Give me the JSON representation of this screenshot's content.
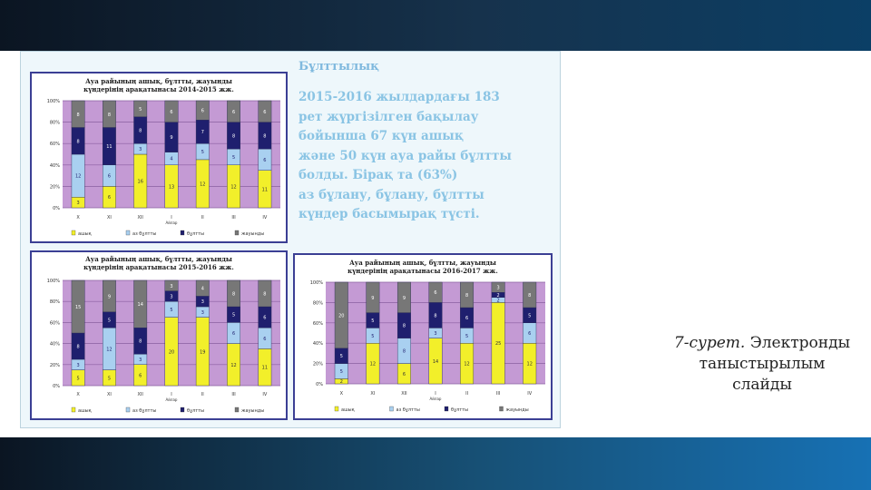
{
  "colors": {
    "clear": "#f2ef2a",
    "partly_cloudy": "#a9d0f0",
    "cloudy": "#1f1f6e",
    "rainy": "#777777",
    "plot_bg": "#c49ad4",
    "frame": "#3b3f94"
  },
  "info": {
    "title": "Бұлттылық",
    "lines": [
      "2015-2016 жылдардағы 183",
      "рет жүргізілген бақылау",
      "бойынша 67 күн ашық",
      "және 50 күн ауа райы бұлтты",
      "болды. Бірақ та (63%)",
      "аз бұлану, бұлану, бұлтты",
      "күндер басымырақ түсті."
    ]
  },
  "caption": {
    "label": "7-сурет.",
    "title_lines": [
      "Электронды",
      "таныстырылым",
      "слайды"
    ]
  },
  "chart_data": [
    {
      "type": "bar",
      "stacked": true,
      "title_lines": [
        "Ауа райының ашық, бұлтты, жауынды",
        "күндерінің арақатынасы 2014-2015 жж."
      ],
      "categories": [
        "X",
        "XI",
        "XII",
        "I",
        "II",
        "III",
        "IV"
      ],
      "category_marker": "Айлар",
      "y_ticks": [
        "0%",
        "20%",
        "40%",
        "60%",
        "80%",
        "100%"
      ],
      "ylim": [
        0,
        100
      ],
      "grid": true,
      "legend": [
        "ашық",
        "аз бұлтты",
        "бұлтты",
        "жауынды"
      ],
      "legend_position": "bottom",
      "series": [
        {
          "name": "ашық",
          "values": [
            10,
            20,
            50,
            40,
            45,
            40,
            35
          ],
          "labels": [
            "3",
            "6",
            "16",
            "13",
            "12",
            "12",
            "11"
          ]
        },
        {
          "name": "аз бұлтты",
          "values": [
            40,
            20,
            10,
            12,
            15,
            15,
            20
          ],
          "labels": [
            "12",
            "6",
            "3",
            "4",
            "5",
            "5",
            "6"
          ]
        },
        {
          "name": "бұлтты",
          "values": [
            25,
            35,
            25,
            28,
            22,
            25,
            25
          ],
          "labels": [
            "8",
            "11",
            "8",
            "9",
            "7",
            "8",
            "8"
          ]
        },
        {
          "name": "жауынды",
          "values": [
            25,
            25,
            15,
            20,
            18,
            20,
            20
          ],
          "labels": [
            "8",
            "8",
            "5",
            "6",
            "6",
            "6",
            "6"
          ]
        }
      ]
    },
    {
      "type": "bar",
      "stacked": true,
      "title_lines": [
        "Ауа райының ашық, бұлтты, жауынды",
        "күндерінің арақатынасы 2015-2016 жж."
      ],
      "categories": [
        "X",
        "XI",
        "XII",
        "I",
        "II",
        "III",
        "IV"
      ],
      "category_marker": "Айлар",
      "y_ticks": [
        "0%",
        "20%",
        "40%",
        "60%",
        "80%",
        "100%"
      ],
      "ylim": [
        0,
        100
      ],
      "grid": true,
      "legend": [
        "ашық",
        "аз бұлтты",
        "бұлтты",
        "жауынды"
      ],
      "legend_position": "bottom",
      "series": [
        {
          "name": "ашық",
          "values": [
            15,
            15,
            20,
            65,
            65,
            40,
            35
          ],
          "labels": [
            "5",
            "5",
            "6",
            "20",
            "19",
            "12",
            "11"
          ]
        },
        {
          "name": "аз бұлтты",
          "values": [
            10,
            40,
            10,
            15,
            10,
            20,
            20
          ],
          "labels": [
            "3",
            "12",
            "3",
            "5",
            "3",
            "6",
            "6"
          ]
        },
        {
          "name": "бұлтты",
          "values": [
            25,
            15,
            25,
            10,
            10,
            15,
            20
          ],
          "labels": [
            "8",
            "5",
            "8",
            "3",
            "3",
            "5",
            "6"
          ]
        },
        {
          "name": "жауынды",
          "values": [
            50,
            30,
            45,
            10,
            15,
            25,
            25
          ],
          "labels": [
            "15",
            "9",
            "14",
            "3",
            "4",
            "8",
            "8"
          ]
        }
      ]
    },
    {
      "type": "bar",
      "stacked": true,
      "title_lines": [
        "Ауа райының ашық, бұлтты, жауынды",
        "күндерінің арақатынасы 2016-2017 жж."
      ],
      "categories": [
        "X",
        "XI",
        "XII",
        "I",
        "II",
        "III",
        "IV"
      ],
      "category_marker": "Айлар",
      "y_ticks": [
        "0%",
        "20%",
        "40%",
        "60%",
        "80%",
        "100%"
      ],
      "ylim": [
        0,
        100
      ],
      "grid": true,
      "legend": [
        "ашық",
        "аз бұлтты",
        "бұлтты",
        "жауынды"
      ],
      "legend_position": "bottom",
      "series": [
        {
          "name": "ашық",
          "values": [
            5,
            40,
            20,
            45,
            40,
            80,
            40
          ],
          "labels": [
            "2",
            "12",
            "6",
            "14",
            "12",
            "25",
            "12"
          ]
        },
        {
          "name": "аз бұлтты",
          "values": [
            15,
            15,
            25,
            10,
            15,
            5,
            20
          ],
          "labels": [
            "5",
            "5",
            "8",
            "3",
            "5",
            "2",
            "6"
          ]
        },
        {
          "name": "бұлтты",
          "values": [
            15,
            15,
            25,
            25,
            20,
            5,
            15
          ],
          "labels": [
            "5",
            "5",
            "8",
            "8",
            "6",
            "2",
            "5"
          ]
        },
        {
          "name": "жауынды",
          "values": [
            65,
            30,
            30,
            20,
            25,
            10,
            25
          ],
          "labels": [
            "20",
            "9",
            "9",
            "6",
            "8",
            "3",
            "8"
          ]
        }
      ]
    }
  ]
}
